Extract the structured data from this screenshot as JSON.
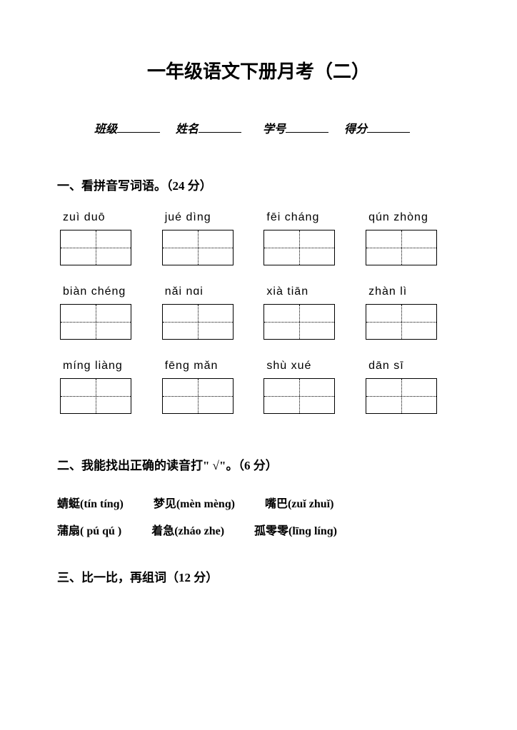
{
  "title": "一年级语文下册月考（二）",
  "info": {
    "class_label": "班级",
    "name_label": "姓名",
    "id_label": "学号",
    "score_label": "得分"
  },
  "q1": {
    "heading": "一、看拼音写词语。（24 分）",
    "items": [
      {
        "p": "zuì  duō",
        "bold": false
      },
      {
        "p": "jué  dìnɡ",
        "bold": false
      },
      {
        "p": "fēi  chánɡ",
        "bold": false
      },
      {
        "p": "qún  zhònɡ",
        "bold": false
      },
      {
        "p": "biàn  chénɡ",
        "bold": false
      },
      {
        "p": "nǎi  nɑi",
        "bold": true
      },
      {
        "p": "xià  tiān",
        "bold": false
      },
      {
        "p": "zhàn  lì",
        "bold": false
      },
      {
        "p": "mínɡ  liànɡ",
        "bold": false
      },
      {
        "p": "fēnɡ  mǎn",
        "bold": false
      },
      {
        "p": "shù  xué",
        "bold": false
      },
      {
        "p": "dān  sī",
        "bold": false
      }
    ]
  },
  "q2": {
    "heading": "二、我能找出正确的读音打\" √\"。（6 分）",
    "pairs": [
      {
        "word": "蜻蜓",
        "opts": "(tín   tínɡ)"
      },
      {
        "word": "梦见",
        "opts": "(mèn   mènɡ)"
      },
      {
        "word": "嘴巴",
        "opts": "(zuǐ zhuǐ)"
      },
      {
        "word": "蒲扇",
        "opts": "( pú    qú )"
      },
      {
        "word": "着急",
        "opts": "(zháo   zhe)"
      },
      {
        "word": "孤零零",
        "opts": "(līnɡ línɡ)"
      }
    ]
  },
  "q3": {
    "heading": "三、比一比，再组词（12 分）"
  }
}
